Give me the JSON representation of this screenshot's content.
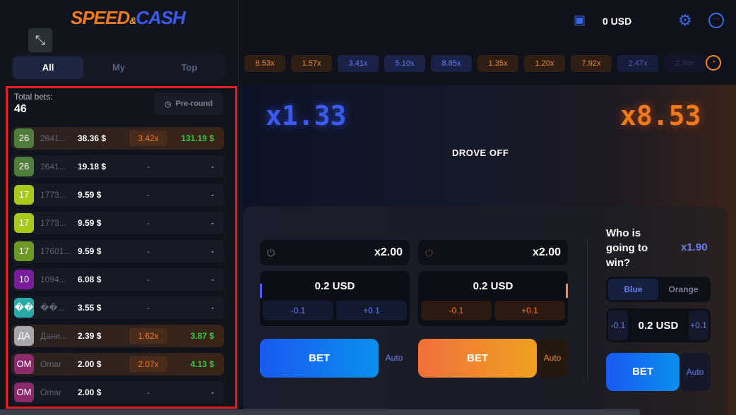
{
  "logo": {
    "text1": "SPEED",
    "amp": "&",
    "text2": "CASH"
  },
  "sidebar": {
    "tabs": [
      {
        "label": "All",
        "active": true
      },
      {
        "label": "My"
      },
      {
        "label": "Top"
      }
    ],
    "total_bets_label": "Total bets:",
    "total_bets": "46",
    "preround_label": "Pre-round",
    "rows": [
      {
        "avatar": "26",
        "color": "#4f7d3c",
        "name": "2641...",
        "bet": "38.36 $",
        "mult": "3.42x",
        "win": "131.19 $",
        "won": true
      },
      {
        "avatar": "26",
        "color": "#4f7d3c",
        "name": "2641...",
        "bet": "19.18 $",
        "mult": "-",
        "win": "-"
      },
      {
        "avatar": "17",
        "color": "#a9c91a",
        "name": "1773...",
        "bet": "9.59 $",
        "mult": "-",
        "win": "-"
      },
      {
        "avatar": "17",
        "color": "#a9c91a",
        "name": "1773...",
        "bet": "9.59 $",
        "mult": "-",
        "win": "-"
      },
      {
        "avatar": "17",
        "color": "#6d9a22",
        "name": "17601...",
        "bet": "9.59 $",
        "mult": "-",
        "win": "-"
      },
      {
        "avatar": "10",
        "color": "#7a1c9c",
        "name": "1094...",
        "bet": "6.08 $",
        "mult": "-",
        "win": "-"
      },
      {
        "avatar": "��",
        "color": "#2aa9a9",
        "name": "��...",
        "bet": "3.55 $",
        "mult": "-",
        "win": "-"
      },
      {
        "avatar": "ДА",
        "color": "#a7a7ab",
        "name": "Дани...",
        "bet": "2.39 $",
        "mult": "1.62x",
        "win": "3.87 $",
        "won": true
      },
      {
        "avatar": "OM",
        "color": "#8c2a6c",
        "name": "Omar",
        "bet": "2.00 $",
        "mult": "2.07x",
        "win": "4.13 $",
        "won": true
      },
      {
        "avatar": "OM",
        "color": "#8c2a6c",
        "name": "Omar",
        "bet": "2.00 $",
        "mult": "-",
        "win": "-"
      }
    ]
  },
  "header": {
    "balance": "0 USD"
  },
  "history": [
    {
      "v": "8.53x",
      "c": "o"
    },
    {
      "v": "1.57x",
      "c": "o"
    },
    {
      "v": "3.41x",
      "c": "b"
    },
    {
      "v": "5.10x",
      "c": "b"
    },
    {
      "v": "8.85x",
      "c": "b"
    },
    {
      "v": "1.35x",
      "c": "o"
    },
    {
      "v": "1.20x",
      "c": "o"
    },
    {
      "v": "7.92x",
      "c": "o"
    },
    {
      "v": "2.47x",
      "c": "b"
    },
    {
      "v": "2.30x",
      "c": "b"
    }
  ],
  "game": {
    "blue_mult": "x1.33",
    "orange_mult": "x8.53",
    "status": "DROVE OFF"
  },
  "bets": [
    {
      "auto_cashout": "x2.00",
      "amount": "0.2 USD",
      "minus": "-0.1",
      "plus": "+0.1",
      "bet": "BET",
      "auto": "Auto",
      "color": "#2a6af0"
    },
    {
      "auto_cashout": "x2.00",
      "amount": "0.2 USD",
      "minus": "-0.1",
      "plus": "+0.1",
      "bet": "BET",
      "auto": "Auto",
      "color": "#f08a2a"
    }
  ],
  "side": {
    "question": "Who is going to win?",
    "odds": "x1.90",
    "options": [
      "Blue",
      "Orange"
    ],
    "amount": "0.2 USD",
    "minus": "-0.1",
    "plus": "+0.1",
    "bet": "BET",
    "auto": "Auto"
  },
  "colors": {
    "blue": "#3a5af0",
    "orange": "#f07a1a",
    "win_green": "#2ecc40"
  }
}
